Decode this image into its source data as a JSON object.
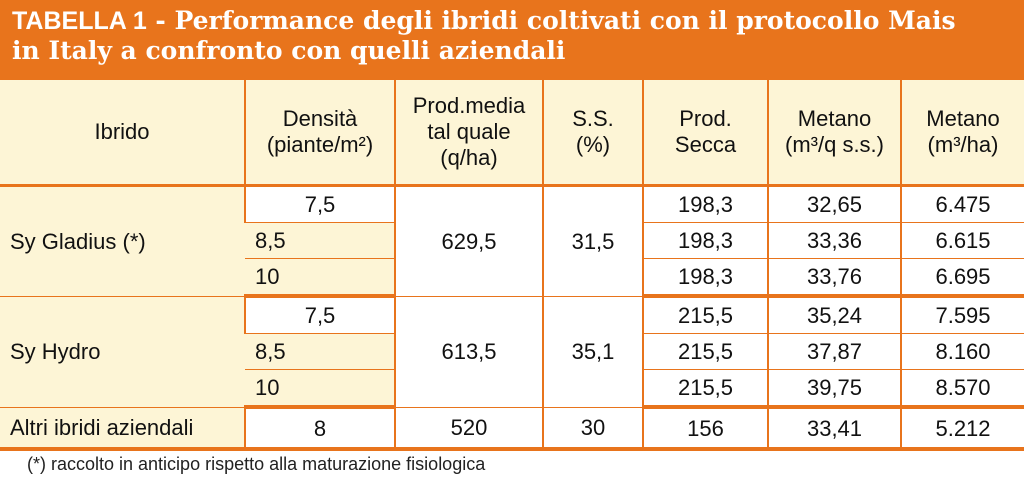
{
  "title": {
    "label": "TABELLA 1",
    "separator": " - ",
    "line1": "Performance degli ibridi coltivati con il protocollo Mais",
    "line2": "in Italy a confronto con quelli aziendali"
  },
  "headers": [
    [
      "Ibrido"
    ],
    [
      "Densità",
      "(piante/m²)"
    ],
    [
      "Prod.media",
      "tal quale",
      "(q/ha)"
    ],
    [
      "S.S.",
      "(%)"
    ],
    [
      "Prod.",
      "Secca"
    ],
    [
      "Metano",
      "(m³/q s.s.)"
    ],
    [
      "Metano",
      "(m³/ha)"
    ]
  ],
  "groups": [
    {
      "name": "Sy Gladius (*)",
      "prod_media": "629,5",
      "ss": "31,5",
      "rows": [
        {
          "densita": "7,5",
          "prod_secca": "198,3",
          "metano_q": "32,65",
          "metano_ha": "6.475"
        },
        {
          "densita": "8,5",
          "prod_secca": "198,3",
          "metano_q": "33,36",
          "metano_ha": "6.615"
        },
        {
          "densita": "10",
          "prod_secca": "198,3",
          "metano_q": "33,76",
          "metano_ha": "6.695"
        }
      ]
    },
    {
      "name": "Sy Hydro",
      "prod_media": "613,5",
      "ss": "35,1",
      "rows": [
        {
          "densita": "7,5",
          "prod_secca": "215,5",
          "metano_q": "35,24",
          "metano_ha": "7.595"
        },
        {
          "densita": "8,5",
          "prod_secca": "215,5",
          "metano_q": "37,87",
          "metano_ha": "8.160"
        },
        {
          "densita": "10",
          "prod_secca": "215,5",
          "metano_q": "39,75",
          "metano_ha": "8.570"
        }
      ]
    }
  ],
  "other": {
    "name": "Altri ibridi aziendali",
    "densita": "8",
    "prod_media": "520",
    "ss": "30",
    "prod_secca": "156",
    "metano_q": "33,41",
    "metano_ha": "5.212"
  },
  "footnote": "(*) raccolto in anticipo rispetto alla maturazione fisiologica",
  "colors": {
    "accent": "#e8741c",
    "header_bg": "#fdf5d6"
  }
}
